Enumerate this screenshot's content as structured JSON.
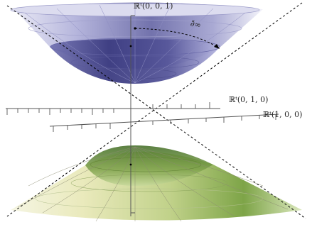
{
  "labels": {
    "top_axis": "ℝᵗ(0, 0, 1)",
    "middle_axis": "ℝᵗ(0, 1, 0)",
    "right_axis": "ℝᵗ(1, 0, 0)",
    "arrow_label": "∂̄∞"
  },
  "colors": {
    "upper_sheet_dark": "#3f3f86",
    "upper_sheet_light": "#c9c9e6",
    "lower_sheet_green": "#5e8f2c",
    "lower_sheet_yellow": "#ecedb6",
    "mesh_lines": "#8a8a8a",
    "axes": "#555555",
    "cone_lines": "#000000"
  }
}
